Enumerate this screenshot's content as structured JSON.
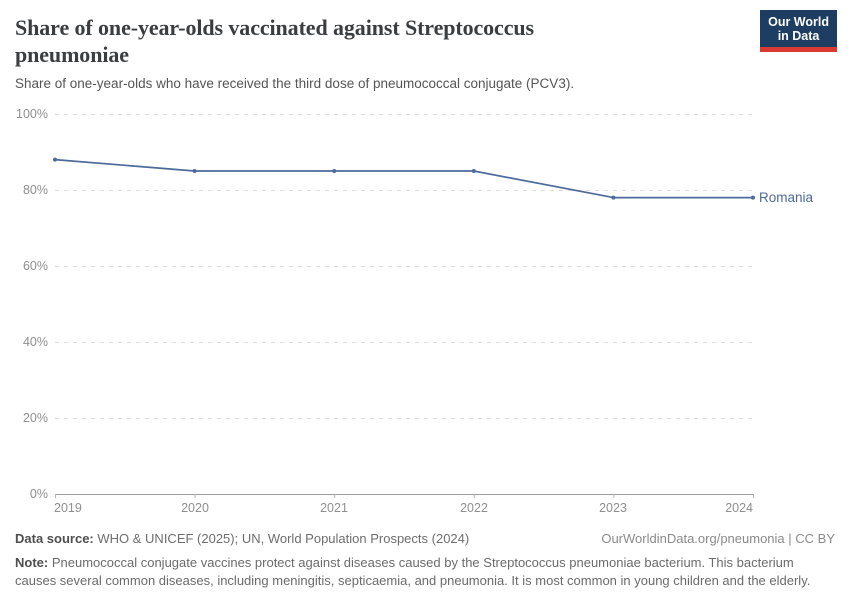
{
  "header": {
    "title": "Share of one-year-olds vaccinated against Streptococcus pneumoniae",
    "subtitle": "Share of one-year-olds who have received the third dose of pneumococcal conjugate (PCV3).",
    "logo": {
      "line1": "Our World",
      "line2": "in Data",
      "bg_color": "#1d3d63",
      "accent_color": "#d93a34"
    }
  },
  "chart_data": {
    "type": "line",
    "title": "Share of one-year-olds vaccinated against Streptococcus pneumoniae",
    "x": [
      "2019",
      "2020",
      "2021",
      "2022",
      "2023",
      "2024"
    ],
    "series": [
      {
        "name": "Romania",
        "values": [
          88,
          85,
          85,
          85,
          78,
          78
        ],
        "color": "#4C6A9C"
      }
    ],
    "ylim": [
      0,
      100
    ],
    "yticks": [
      0,
      20,
      40,
      60,
      80,
      100
    ],
    "ytick_labels": [
      "0%",
      "20%",
      "40%",
      "60%",
      "80%",
      "100%"
    ],
    "xlabel": "",
    "ylabel": "",
    "grid": "horizontal-dashed",
    "legend": "line-end-label"
  },
  "footer": {
    "source_label": "Data source:",
    "source_value": "WHO & UNICEF (2025); UN, World Population Prospects (2024)",
    "link": "OurWorldinData.org/pneumonia",
    "separator": " | ",
    "license": "CC BY",
    "note_label": "Note:",
    "note_value": "Pneumococcal conjugate vaccines protect against diseases caused by the Streptococcus pneumoniae bacterium. This bacterium causes several common diseases, including meningitis, septicaemia, and pneumonia. It is most common in young children and the elderly."
  }
}
